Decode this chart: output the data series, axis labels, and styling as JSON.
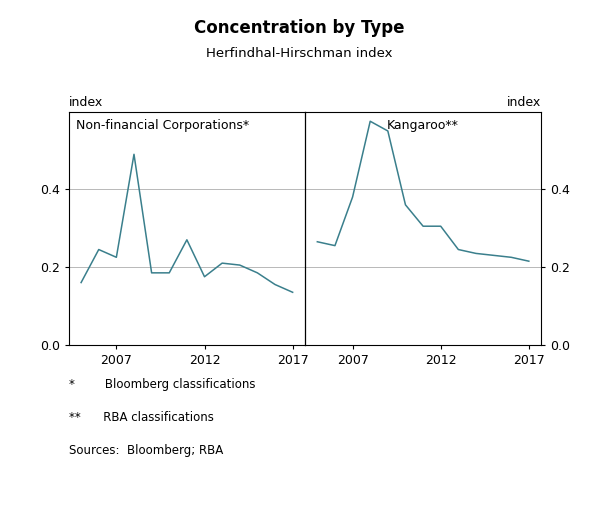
{
  "title": "Concentration by Type",
  "subtitle": "Herfindhal-Hirschman index",
  "left_label": "Non-financial Corporations*",
  "right_label": "Kangaroo**",
  "ylabel": "index",
  "ylim": [
    0.0,
    0.6
  ],
  "yticks": [
    0.0,
    0.2,
    0.4
  ],
  "footnote1": "*        Bloomberg classifications",
  "footnote2": "**      RBA classifications",
  "footnote3": "Sources:  Bloomberg; RBA",
  "left_data": {
    "years": [
      2005,
      2006,
      2007,
      2008,
      2009,
      2010,
      2011,
      2012,
      2013,
      2014,
      2015,
      2016,
      2017
    ],
    "values": [
      0.16,
      0.245,
      0.225,
      0.49,
      0.185,
      0.185,
      0.27,
      0.175,
      0.21,
      0.205,
      0.185,
      0.155,
      0.135
    ]
  },
  "right_data": {
    "years": [
      2005,
      2006,
      2007,
      2008,
      2009,
      2010,
      2011,
      2012,
      2013,
      2014,
      2015,
      2016,
      2017
    ],
    "values": [
      0.265,
      0.255,
      0.38,
      0.575,
      0.55,
      0.36,
      0.305,
      0.305,
      0.245,
      0.235,
      0.23,
      0.225,
      0.215
    ]
  },
  "line_color": "#3a7f8c",
  "grid_color": "#b8b8b8",
  "border_color": "#000000",
  "background_color": "#ffffff",
  "xticks_left": [
    2007,
    2012,
    2017
  ],
  "xticks_right": [
    2007,
    2012,
    2017
  ],
  "xlim_left": [
    2004.3,
    2017.7
  ],
  "xlim_right": [
    2004.3,
    2017.7
  ]
}
